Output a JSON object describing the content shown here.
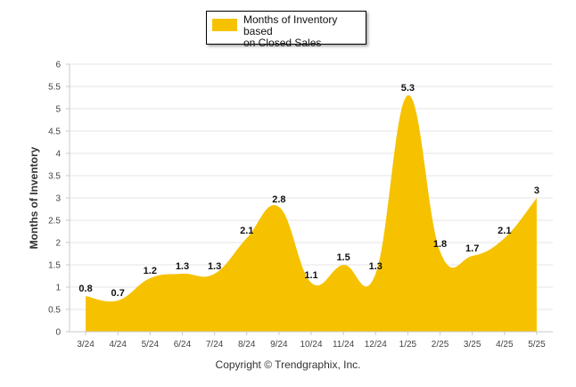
{
  "chart_data": {
    "type": "area",
    "categories": [
      "3/24",
      "4/24",
      "5/24",
      "6/24",
      "7/24",
      "8/24",
      "9/24",
      "10/24",
      "11/24",
      "12/24",
      "1/25",
      "2/25",
      "3/25",
      "4/25",
      "5/25"
    ],
    "series": [
      {
        "name": "Months of Inventory based on Closed Sales",
        "values": [
          0.8,
          0.7,
          1.2,
          1.3,
          1.3,
          2.1,
          2.8,
          1.1,
          1.5,
          1.3,
          5.3,
          1.8,
          1.7,
          2.1,
          3
        ],
        "data_labels": [
          "0.8",
          "0.7",
          "1.2",
          "1.3",
          "1.3",
          "2.1",
          "2.8",
          "1.1",
          "1.5",
          "1.3",
          "5.3",
          "1.8",
          "1.7",
          "2.1",
          "3"
        ],
        "color": "#F6C200"
      }
    ],
    "ylabel": "Months of Inventory",
    "xlabel": "",
    "ylim": [
      0,
      6
    ],
    "yticks": [
      0,
      0.5,
      1,
      1.5,
      2,
      2.5,
      3,
      3.5,
      4,
      4.5,
      5,
      5.5,
      6
    ],
    "ytick_labels": [
      "0",
      "0.5",
      "1",
      "1.5",
      "2",
      "2.5",
      "3",
      "3.5",
      "4",
      "4.5",
      "5",
      "5.5",
      "6"
    ],
    "grid": true,
    "legend_position": "top-center"
  },
  "legend": {
    "label": "Months of Inventory based\non Closed Sales",
    "color": "#F6C200"
  },
  "footer": {
    "copyright": "Copyright © Trendgraphix, Inc."
  }
}
